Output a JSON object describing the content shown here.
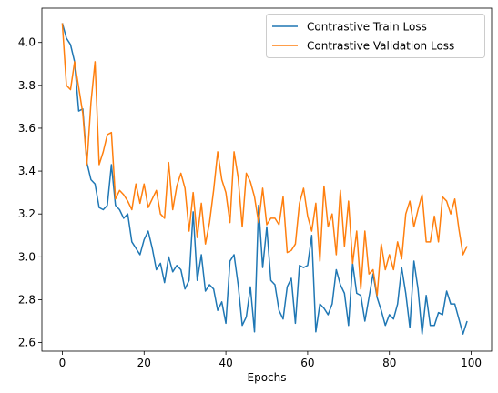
{
  "chart_data": {
    "type": "line",
    "title": "",
    "xlabel": "Epochs",
    "ylabel": "",
    "xlim": [
      -5,
      105
    ],
    "ylim": [
      2.56,
      4.16
    ],
    "xticks": [
      0,
      20,
      40,
      60,
      80,
      100
    ],
    "xtick_labels": [
      "0",
      "20",
      "40",
      "60",
      "80",
      "100"
    ],
    "yticks": [
      2.6,
      2.8,
      3.0,
      3.2,
      3.4,
      3.6,
      3.8,
      4.0
    ],
    "ytick_labels": [
      "2.6",
      "2.8",
      "3.0",
      "3.2",
      "3.4",
      "3.6",
      "3.8",
      "4.0"
    ],
    "grid": false,
    "legend_position": "top-right",
    "x": [
      0,
      1,
      2,
      3,
      4,
      5,
      6,
      7,
      8,
      9,
      10,
      11,
      12,
      13,
      14,
      15,
      16,
      17,
      18,
      19,
      20,
      21,
      22,
      23,
      24,
      25,
      26,
      27,
      28,
      29,
      30,
      31,
      32,
      33,
      34,
      35,
      36,
      37,
      38,
      39,
      40,
      41,
      42,
      43,
      44,
      45,
      46,
      47,
      48,
      49,
      50,
      51,
      52,
      53,
      54,
      55,
      56,
      57,
      58,
      59,
      60,
      61,
      62,
      63,
      64,
      65,
      66,
      67,
      68,
      69,
      70,
      71,
      72,
      73,
      74,
      75,
      76,
      77,
      78,
      79,
      80,
      81,
      82,
      83,
      84,
      85,
      86,
      87,
      88,
      89,
      90,
      91,
      92,
      93,
      94,
      95,
      96,
      97,
      98,
      99
    ],
    "series": [
      {
        "name": "Contrastive Train Loss",
        "color": "#1f77b4",
        "values": [
          4.09,
          4.02,
          3.99,
          3.91,
          3.68,
          3.69,
          3.44,
          3.36,
          3.34,
          3.23,
          3.22,
          3.24,
          3.43,
          3.24,
          3.22,
          3.18,
          3.2,
          3.07,
          3.04,
          3.01,
          3.08,
          3.12,
          3.04,
          2.94,
          2.97,
          2.88,
          3.0,
          2.93,
          2.96,
          2.94,
          2.85,
          2.89,
          3.21,
          2.89,
          3.01,
          2.84,
          2.87,
          2.85,
          2.75,
          2.79,
          2.69,
          2.98,
          3.01,
          2.87,
          2.68,
          2.72,
          2.86,
          2.65,
          3.24,
          2.95,
          3.14,
          2.89,
          2.87,
          2.75,
          2.71,
          2.86,
          2.9,
          2.69,
          2.96,
          2.95,
          2.96,
          3.1,
          2.65,
          2.78,
          2.76,
          2.73,
          2.78,
          2.94,
          2.87,
          2.83,
          2.68,
          2.97,
          2.83,
          2.82,
          2.7,
          2.81,
          2.92,
          2.81,
          2.75,
          2.68,
          2.73,
          2.71,
          2.78,
          2.95,
          2.83,
          2.67,
          2.98,
          2.85,
          2.64,
          2.82,
          2.68,
          2.68,
          2.74,
          2.73,
          2.84,
          2.78,
          2.78,
          2.71,
          2.64,
          2.7
        ]
      },
      {
        "name": "Contrastive Validation Loss",
        "color": "#ff7f0e",
        "values": [
          4.09,
          3.8,
          3.78,
          3.91,
          3.79,
          3.67,
          3.43,
          3.72,
          3.91,
          3.43,
          3.49,
          3.57,
          3.58,
          3.27,
          3.31,
          3.29,
          3.26,
          3.22,
          3.34,
          3.25,
          3.34,
          3.23,
          3.27,
          3.31,
          3.2,
          3.18,
          3.44,
          3.22,
          3.33,
          3.39,
          3.32,
          3.12,
          3.3,
          3.09,
          3.25,
          3.06,
          3.16,
          3.31,
          3.49,
          3.36,
          3.3,
          3.16,
          3.49,
          3.37,
          3.14,
          3.39,
          3.35,
          3.28,
          3.16,
          3.32,
          3.15,
          3.18,
          3.18,
          3.15,
          3.28,
          3.02,
          3.03,
          3.06,
          3.25,
          3.32,
          3.19,
          3.12,
          3.25,
          2.98,
          3.33,
          3.14,
          3.2,
          3.01,
          3.31,
          3.05,
          3.26,
          2.97,
          3.12,
          2.85,
          3.12,
          2.92,
          2.94,
          2.82,
          3.06,
          2.94,
          3.01,
          2.94,
          3.07,
          2.99,
          3.2,
          3.26,
          3.14,
          3.22,
          3.29,
          3.07,
          3.07,
          3.19,
          3.07,
          3.28,
          3.26,
          3.2,
          3.27,
          3.13,
          3.01,
          3.05
        ]
      }
    ]
  }
}
